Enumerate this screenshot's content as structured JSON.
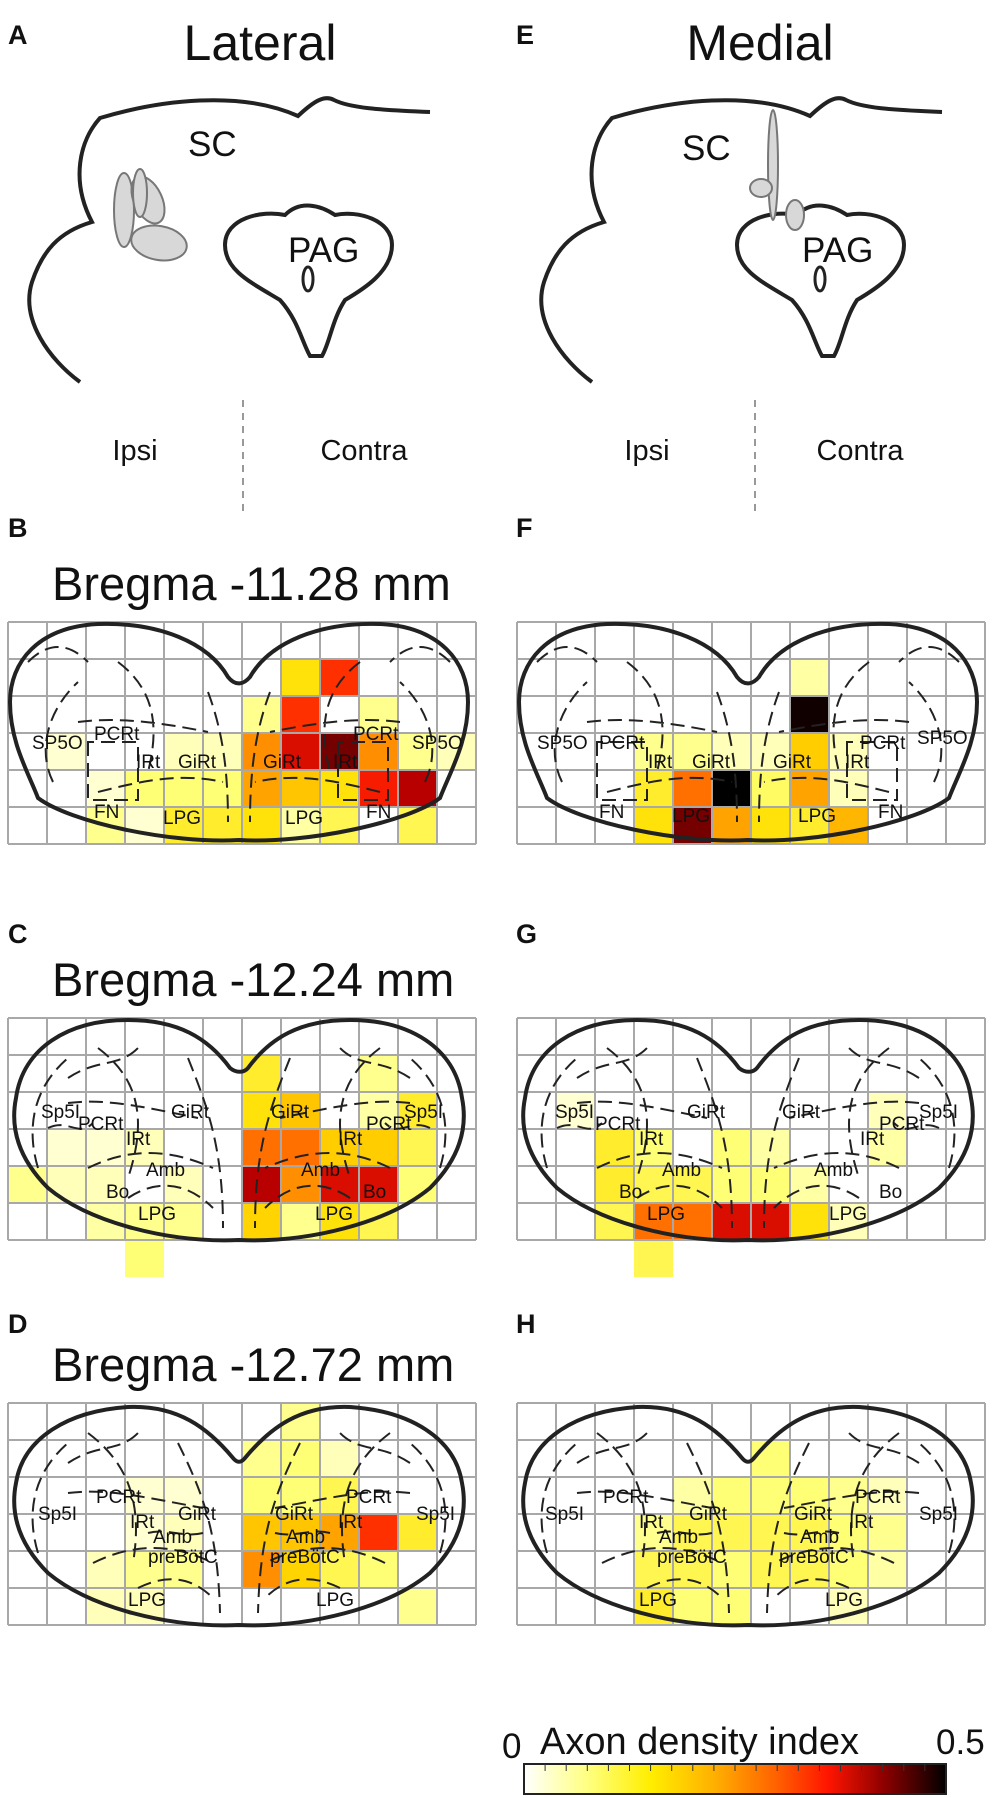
{
  "panel_letters": {
    "a": "A",
    "b": "B",
    "c": "C",
    "d": "D",
    "e": "E",
    "f": "F",
    "g": "G",
    "h": "H"
  },
  "column_titles": {
    "lateral": "Lateral",
    "medial": "Medial"
  },
  "midbrain_labels": {
    "sc": "SC",
    "pag": "PAG"
  },
  "side_labels": {
    "ipsi": "Ipsi",
    "contra": "Contra"
  },
  "bregma": {
    "b": "Bregma -11.28 mm",
    "c": "Bregma -12.24 mm",
    "d": "Bregma -12.72 mm"
  },
  "colorbar": {
    "title": "Axon density index",
    "min_label": "0",
    "max_label": "0.5",
    "min": 0,
    "max": 0.5,
    "colormap": [
      "#ffffff",
      "#ffff70",
      "#ffe000",
      "#ffb000",
      "#ff7000",
      "#ff2000",
      "#c00000",
      "#6a0000",
      "#000000"
    ]
  },
  "regions": {
    "row1": [
      "SP5O",
      "PCRt",
      "IRt",
      "GiRt",
      "GiRt",
      "IRt",
      "PCRt",
      "SP5O",
      "FN",
      "LPG",
      "LPG",
      "FN"
    ],
    "row2": [
      "Sp5I",
      "PCRt",
      "IRt",
      "GiRt",
      "GiRt",
      "IRt",
      "PCRt",
      "Sp5I",
      "Amb",
      "Amb",
      "Bo",
      "Bo",
      "LPG",
      "LPG"
    ],
    "row3": [
      "Sp5I",
      "PCRt",
      "IRt",
      "GiRt",
      "GiRt",
      "IRt",
      "PCRt",
      "Sp5I",
      "Amb",
      "Amb",
      "preBötC",
      "preBötC",
      "LPG",
      "LPG"
    ]
  },
  "chart_data": [
    {
      "panel": "B",
      "type": "heatmap",
      "columns": 12,
      "rows": 6,
      "unit": "Axon density index",
      "range": [
        0,
        0.5
      ],
      "cells": [
        [
          7,
          1,
          0.12
        ],
        [
          8,
          1,
          0.3
        ],
        [
          6,
          2,
          0.05
        ],
        [
          7,
          2,
          0.3
        ],
        [
          9,
          2,
          0.05
        ],
        [
          5,
          3,
          0.03
        ],
        [
          6,
          3,
          0.22
        ],
        [
          7,
          3,
          0.35
        ],
        [
          8,
          3,
          0.43
        ],
        [
          9,
          3,
          0.22
        ],
        [
          10,
          3,
          0.05
        ],
        [
          11,
          3,
          0.03
        ],
        [
          4,
          3,
          0.03
        ],
        [
          1,
          3,
          0.02
        ],
        [
          2,
          4,
          0.02
        ],
        [
          3,
          4,
          0.06
        ],
        [
          4,
          4,
          0.06
        ],
        [
          5,
          4,
          0.06
        ],
        [
          6,
          4,
          0.2
        ],
        [
          7,
          4,
          0.16
        ],
        [
          8,
          4,
          0.12
        ],
        [
          9,
          4,
          0.32
        ],
        [
          10,
          4,
          0.38
        ],
        [
          2,
          5,
          0.05
        ],
        [
          3,
          5,
          0.02
        ],
        [
          4,
          5,
          0.1
        ],
        [
          5,
          5,
          0.1
        ],
        [
          6,
          5,
          0.12
        ],
        [
          7,
          5,
          0.04
        ],
        [
          8,
          5,
          0.08
        ],
        [
          10,
          5,
          0.08
        ]
      ]
    },
    {
      "panel": "F",
      "type": "heatmap",
      "columns": 12,
      "rows": 6,
      "unit": "Axon density index",
      "range": [
        0,
        0.5
      ],
      "cells": [
        [
          7,
          1,
          0.04
        ],
        [
          7,
          2,
          0.49
        ],
        [
          3,
          3,
          0.05
        ],
        [
          4,
          3,
          0.05
        ],
        [
          5,
          3,
          0.03
        ],
        [
          6,
          3,
          0.03
        ],
        [
          7,
          3,
          0.15
        ],
        [
          8,
          3,
          0.03
        ],
        [
          3,
          4,
          0.1
        ],
        [
          4,
          4,
          0.25
        ],
        [
          5,
          4,
          0.5
        ],
        [
          6,
          4,
          0.07
        ],
        [
          7,
          4,
          0.2
        ],
        [
          8,
          4,
          0.03
        ],
        [
          3,
          5,
          0.12
        ],
        [
          4,
          5,
          0.43
        ],
        [
          5,
          5,
          0.2
        ],
        [
          6,
          5,
          0.12
        ],
        [
          7,
          5,
          0.1
        ],
        [
          8,
          5,
          0.18
        ]
      ]
    },
    {
      "panel": "C",
      "type": "heatmap",
      "columns": 12,
      "rows": 6,
      "unit": "Axon density index",
      "range": [
        0,
        0.5
      ],
      "cells": [
        [
          6,
          1,
          0.1
        ],
        [
          9,
          1,
          0.05
        ],
        [
          6,
          2,
          0.12
        ],
        [
          7,
          2,
          0.16
        ],
        [
          9,
          2,
          0.04
        ],
        [
          10,
          2,
          0.1
        ],
        [
          1,
          3,
          0.02
        ],
        [
          2,
          3,
          0.02
        ],
        [
          6,
          3,
          0.25
        ],
        [
          7,
          3,
          0.25
        ],
        [
          8,
          3,
          0.15
        ],
        [
          9,
          3,
          0.15
        ],
        [
          10,
          3,
          0.08
        ],
        [
          3,
          3,
          0.03
        ],
        [
          0,
          4,
          0.05
        ],
        [
          1,
          4,
          0.03
        ],
        [
          2,
          4,
          0.03
        ],
        [
          4,
          4,
          0.03
        ],
        [
          6,
          4,
          0.38
        ],
        [
          7,
          4,
          0.22
        ],
        [
          8,
          4,
          0.35
        ],
        [
          9,
          4,
          0.35
        ],
        [
          10,
          4,
          0.06
        ],
        [
          2,
          5,
          0.04
        ],
        [
          3,
          5,
          0.05
        ],
        [
          4,
          5,
          0.05
        ],
        [
          6,
          5,
          0.14
        ],
        [
          7,
          5,
          0.05
        ],
        [
          8,
          5,
          0.12
        ],
        [
          9,
          5,
          0.08
        ],
        [
          3,
          6,
          0.06
        ]
      ]
    },
    {
      "panel": "G",
      "type": "heatmap",
      "columns": 12,
      "rows": 6,
      "unit": "Axon density index",
      "range": [
        0,
        0.5
      ],
      "cells": [
        [
          1,
          2,
          0.02
        ],
        [
          9,
          2,
          0.03
        ],
        [
          2,
          3,
          0.1
        ],
        [
          3,
          3,
          0.06
        ],
        [
          5,
          3,
          0.06
        ],
        [
          6,
          3,
          0.04
        ],
        [
          9,
          3,
          0.04
        ],
        [
          2,
          4,
          0.1
        ],
        [
          3,
          4,
          0.08
        ],
        [
          4,
          4,
          0.08
        ],
        [
          5,
          4,
          0.06
        ],
        [
          6,
          4,
          0.06
        ],
        [
          7,
          4,
          0.04
        ],
        [
          2,
          5,
          0.08
        ],
        [
          3,
          5,
          0.25
        ],
        [
          4,
          5,
          0.25
        ],
        [
          5,
          5,
          0.35
        ],
        [
          6,
          5,
          0.35
        ],
        [
          7,
          5,
          0.12
        ],
        [
          8,
          5,
          0.03
        ],
        [
          3,
          6,
          0.08
        ]
      ]
    },
    {
      "panel": "D",
      "type": "heatmap",
      "columns": 12,
      "rows": 6,
      "unit": "Axon density index",
      "range": [
        0,
        0.5
      ],
      "cells": [
        [
          7,
          0,
          0.05
        ],
        [
          6,
          1,
          0.05
        ],
        [
          7,
          1,
          0.06
        ],
        [
          8,
          1,
          0.03
        ],
        [
          4,
          2,
          0.02
        ],
        [
          6,
          2,
          0.06
        ],
        [
          7,
          2,
          0.06
        ],
        [
          8,
          2,
          0.08
        ],
        [
          3,
          2,
          0.02
        ],
        [
          6,
          3,
          0.16
        ],
        [
          7,
          3,
          0.16
        ],
        [
          8,
          3,
          0.2
        ],
        [
          9,
          3,
          0.3
        ],
        [
          10,
          3,
          0.1
        ],
        [
          3,
          3,
          0.02
        ],
        [
          4,
          3,
          0.03
        ],
        [
          6,
          4,
          0.22
        ],
        [
          7,
          4,
          0.14
        ],
        [
          8,
          4,
          0.08
        ],
        [
          9,
          4,
          0.06
        ],
        [
          3,
          4,
          0.05
        ],
        [
          4,
          4,
          0.05
        ],
        [
          2,
          4,
          0.03
        ],
        [
          2,
          5,
          0.03
        ],
        [
          3,
          5,
          0.03
        ],
        [
          10,
          5,
          0.05
        ]
      ]
    },
    {
      "panel": "H",
      "type": "heatmap",
      "columns": 12,
      "rows": 6,
      "unit": "Axon density index",
      "range": [
        0,
        0.5
      ],
      "cells": [
        [
          6,
          1,
          0.06
        ],
        [
          4,
          2,
          0.04
        ],
        [
          5,
          2,
          0.06
        ],
        [
          6,
          2,
          0.06
        ],
        [
          7,
          2,
          0.06
        ],
        [
          8,
          2,
          0.05
        ],
        [
          9,
          2,
          0.03
        ],
        [
          3,
          3,
          0.05
        ],
        [
          4,
          3,
          0.08
        ],
        [
          5,
          3,
          0.08
        ],
        [
          6,
          3,
          0.08
        ],
        [
          7,
          3,
          0.08
        ],
        [
          8,
          3,
          0.06
        ],
        [
          9,
          3,
          0.05
        ],
        [
          3,
          4,
          0.08
        ],
        [
          4,
          4,
          0.08
        ],
        [
          5,
          4,
          0.06
        ],
        [
          6,
          4,
          0.08
        ],
        [
          7,
          4,
          0.08
        ],
        [
          8,
          4,
          0.06
        ],
        [
          9,
          4,
          0.04
        ],
        [
          3,
          5,
          0.1
        ],
        [
          4,
          5,
          0.06
        ],
        [
          5,
          5,
          0.06
        ],
        [
          8,
          5,
          0.03
        ]
      ]
    }
  ]
}
